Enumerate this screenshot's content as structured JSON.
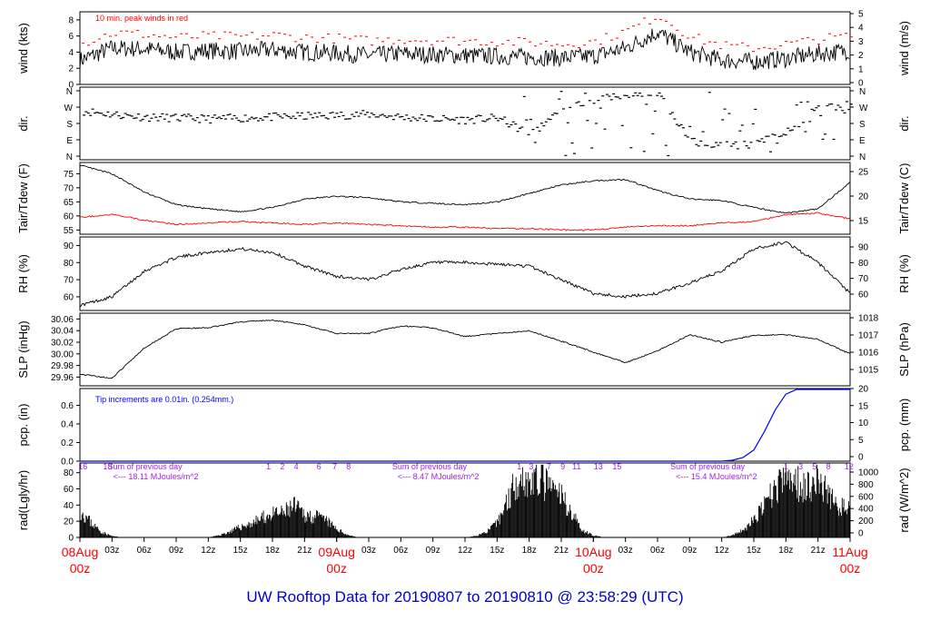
{
  "title": "UW Rooftop Data for 20190807  to  20190810 @ 23:58:29  (UTC)",
  "colors": {
    "data": "#000000",
    "peak": "#ff0000",
    "dewpoint": "#ff0000",
    "precip": "#0000ff",
    "radiation_notes": "#a020f0",
    "day_labels": "#ff0000",
    "title": "#0000cc"
  },
  "time_axis": {
    "start": "2019-08-08 00z",
    "end": "2019-08-11 00z",
    "tick_labels": [
      "03z",
      "06z",
      "09z",
      "12z",
      "15z",
      "18z",
      "21z",
      "",
      "03z",
      "06z",
      "09z",
      "12z",
      "15z",
      "18z",
      "21z",
      "",
      "03z",
      "06z",
      "09z",
      "12z",
      "15z",
      "18z",
      "21z"
    ],
    "day_labels": [
      {
        "date": "08Aug",
        "hour": "00z"
      },
      {
        "date": "09Aug",
        "hour": "00z"
      },
      {
        "date": "10Aug",
        "hour": "00z"
      },
      {
        "date": "11Aug",
        "hour": "00z"
      }
    ]
  },
  "chart_data": [
    {
      "type": "line",
      "id": "wind",
      "ylabel": "wind (kts)",
      "ylabel_right": "wind (m/s)",
      "ylim": [
        0,
        9
      ],
      "yticks": [
        0,
        2,
        4,
        6,
        8
      ],
      "yticks_right": [
        0,
        1,
        2,
        3,
        4,
        5
      ],
      "annotation": "10 min. peak winds in red",
      "x_hours": [
        0,
        3,
        6,
        9,
        12,
        15,
        18,
        21,
        24,
        27,
        30,
        33,
        36,
        39,
        42,
        45,
        48,
        51,
        54,
        57,
        60,
        63,
        66,
        69,
        72
      ],
      "series": [
        {
          "role": "mean",
          "values": [
            3.0,
            4.5,
            4.4,
            4.0,
            4.2,
            4.1,
            4.3,
            4.0,
            3.9,
            3.6,
            3.8,
            3.7,
            3.6,
            3.5,
            3.4,
            3.3,
            3.5,
            4.5,
            6.5,
            4.0,
            3.0,
            2.8,
            3.2,
            3.8,
            4.2
          ]
        },
        {
          "role": "peak",
          "values": [
            5.0,
            6.4,
            6.2,
            5.8,
            6.0,
            5.9,
            6.1,
            5.8,
            5.7,
            5.4,
            5.6,
            5.5,
            5.4,
            5.3,
            5.2,
            5.0,
            5.3,
            6.6,
            8.6,
            5.9,
            4.8,
            4.5,
            5.0,
            5.6,
            6.0
          ]
        }
      ]
    },
    {
      "type": "scatter",
      "id": "direction",
      "ylabel": "dir.",
      "ylabel_right": "dir.",
      "ytick_labels": [
        "N",
        "W",
        "S",
        "E",
        "N"
      ],
      "yticks_deg": [
        360,
        270,
        180,
        90,
        0
      ],
      "x_hours": [
        0,
        3,
        6,
        9,
        12,
        15,
        18,
        21,
        24,
        27,
        30,
        33,
        36,
        39,
        42,
        45,
        48,
        51,
        54,
        57,
        60,
        63,
        66,
        69,
        72
      ],
      "series": [
        {
          "role": "direction",
          "values": [
            250,
            230,
            215,
            210,
            205,
            210,
            215,
            220,
            225,
            230,
            215,
            205,
            200,
            210,
            120,
            250,
            310,
            330,
            345,
            80,
            60,
            65,
            130,
            270,
            280
          ]
        }
      ]
    },
    {
      "type": "line",
      "id": "temperature",
      "ylabel": "Tair/Tdew (F)",
      "ylabel_right": "Tair/Tdew (C)",
      "ylim": [
        53.5,
        79
      ],
      "yticks": [
        55,
        60,
        65,
        70,
        75
      ],
      "yticks_right": [
        15,
        20,
        25
      ],
      "x_hours": [
        0,
        3,
        6,
        9,
        12,
        15,
        18,
        21,
        24,
        27,
        30,
        33,
        36,
        39,
        42,
        45,
        48,
        51,
        54,
        57,
        60,
        63,
        66,
        69,
        72
      ],
      "series": [
        {
          "role": "air temperature",
          "values": [
            78.0,
            75.0,
            68.5,
            64.0,
            62.5,
            61.5,
            63.0,
            66.0,
            67.0,
            66.5,
            65.0,
            64.5,
            64.0,
            65.0,
            68.0,
            71.0,
            72.5,
            73.0,
            69.0,
            66.0,
            65.5,
            63.0,
            61.0,
            62.5,
            72.0
          ]
        },
        {
          "role": "dew point",
          "values": [
            59.5,
            60.5,
            58.5,
            57.0,
            57.5,
            58.0,
            57.5,
            57.0,
            57.5,
            57.0,
            56.5,
            56.0,
            56.0,
            55.5,
            55.5,
            55.0,
            55.0,
            56.0,
            56.5,
            56.5,
            57.5,
            58.0,
            60.5,
            61.0,
            59.0
          ]
        }
      ]
    },
    {
      "type": "line",
      "id": "humidity",
      "ylabel": "RH (%)",
      "ylabel_right": "RH (%)",
      "ylim": [
        52,
        95
      ],
      "yticks": [
        60,
        70,
        80,
        90
      ],
      "yticks_right": [
        60,
        70,
        80,
        90
      ],
      "x_hours": [
        0,
        3,
        6,
        9,
        12,
        15,
        18,
        21,
        24,
        27,
        30,
        33,
        36,
        39,
        42,
        45,
        48,
        51,
        54,
        57,
        60,
        63,
        66,
        69,
        72
      ],
      "series": [
        {
          "role": "relative humidity",
          "values": [
            55,
            60,
            75,
            83,
            86,
            88,
            86,
            78,
            72,
            70,
            76,
            80,
            80,
            79,
            78,
            70,
            62,
            60,
            62,
            68,
            75,
            88,
            92,
            80,
            62
          ]
        }
      ]
    },
    {
      "type": "line",
      "id": "pressure",
      "ylabel": "SLP (inHg)",
      "ylabel_right": "SLP (hPa)",
      "ylim": [
        29.945,
        30.07
      ],
      "yticks": [
        29.96,
        29.98,
        30.0,
        30.02,
        30.04,
        30.06
      ],
      "ytick_labels": [
        "29.96",
        "29.98",
        "30.00",
        "30.02",
        "30.04",
        "30.06"
      ],
      "yticks_right": [
        1015,
        1016,
        1017,
        1018
      ],
      "x_hours": [
        0,
        3,
        6,
        9,
        12,
        15,
        18,
        21,
        24,
        27,
        30,
        33,
        36,
        39,
        42,
        45,
        48,
        51,
        54,
        57,
        60,
        63,
        66,
        69,
        72
      ],
      "series": [
        {
          "role": "sea level pressure",
          "values": [
            29.965,
            29.958,
            30.01,
            30.043,
            30.045,
            30.055,
            30.058,
            30.05,
            30.035,
            30.035,
            30.048,
            30.045,
            30.03,
            30.035,
            30.04,
            30.022,
            30.003,
            29.985,
            30.005,
            30.033,
            30.02,
            30.032,
            30.033,
            30.025,
            30.0
          ]
        }
      ]
    },
    {
      "type": "line",
      "id": "precipitation",
      "ylabel": "pcp. (in)",
      "ylabel_right": "pcp. (mm)",
      "ylim": [
        0,
        0.78
      ],
      "yticks": [
        0.0,
        0.2,
        0.4,
        0.6
      ],
      "ytick_labels": [
        "0.0",
        "0.2",
        "0.4",
        "0.6"
      ],
      "yticks_right": [
        0,
        5,
        10,
        15,
        20
      ],
      "annotation": "Tip increments are 0.01in. (0.254mm.)",
      "x_hours": [
        0,
        60,
        61,
        62,
        63,
        64,
        65,
        66,
        67,
        72
      ],
      "series": [
        {
          "role": "accumulated precipitation",
          "values": [
            0,
            0,
            0.01,
            0.04,
            0.12,
            0.32,
            0.55,
            0.72,
            0.77,
            0.77
          ]
        }
      ]
    },
    {
      "type": "area",
      "id": "radiation",
      "ylabel": "rad(Lgly/hr)",
      "ylabel_right": "rad (W/m^2)",
      "ylim": [
        0,
        92
      ],
      "yticks": [
        0,
        20,
        40,
        60,
        80
      ],
      "yticks_right": [
        0,
        200,
        400,
        600,
        800,
        1000
      ],
      "x_hours": [
        0,
        1,
        2,
        3,
        4,
        5,
        6,
        7,
        8,
        9,
        10,
        11,
        12,
        13,
        14,
        15,
        16,
        17,
        18,
        19,
        20,
        21,
        22,
        23,
        24,
        25,
        26,
        27,
        28,
        29,
        30,
        31,
        32,
        33,
        34,
        35,
        36,
        37,
        38,
        39,
        40,
        41,
        42,
        43,
        44,
        45,
        46,
        47,
        48,
        49,
        50,
        51,
        52,
        53,
        54,
        55,
        56,
        57,
        58,
        59,
        60,
        61,
        62,
        63,
        64,
        65,
        66,
        67,
        68,
        69,
        70,
        71,
        72
      ],
      "series": [
        {
          "role": "solar radiation",
          "values": [
            40,
            22,
            8,
            2,
            0,
            0,
            0,
            0,
            0,
            0,
            0,
            0,
            0,
            3,
            8,
            15,
            20,
            28,
            33,
            35,
            45,
            33,
            30,
            25,
            12,
            4,
            0,
            0,
            0,
            0,
            0,
            0,
            0,
            0,
            0,
            0,
            0,
            2,
            8,
            20,
            55,
            90,
            80,
            85,
            70,
            60,
            35,
            10,
            3,
            0,
            0,
            0,
            0,
            0,
            0,
            0,
            0,
            0,
            0,
            0,
            0,
            3,
            10,
            25,
            45,
            70,
            85,
            80,
            75,
            85,
            60,
            45,
            40
          ]
        }
      ],
      "day_annotations": [
        {
          "x_hour": 2.6,
          "line1": "Sum of previous day",
          "line2": "<--- 18.11 MJoules/m^2"
        },
        {
          "x_hour": 29.2,
          "line1": "Sum of previous day",
          "line2": "<--- 8.47 MJoules/m^2"
        },
        {
          "x_hour": 55.2,
          "line1": "Sum of previous day",
          "line2": "<--- 15.4 MJoules/m^2"
        }
      ],
      "hour_marks": [
        {
          "x_hour": 0.3,
          "label": "16"
        },
        {
          "x_hour": 2.8,
          "label": "18"
        },
        {
          "x_hour": 19.1,
          "label": "1"
        },
        {
          "x_hour": 20.5,
          "label": "2"
        },
        {
          "x_hour": 21.9,
          "label": "4"
        },
        {
          "x_hour": 24.2,
          "label": "6"
        },
        {
          "x_hour": 25.8,
          "label": "7"
        },
        {
          "x_hour": 27.2,
          "label": "8"
        },
        {
          "x_hour": 44.5,
          "label": "1"
        },
        {
          "x_hour": 45.7,
          "label": "3"
        },
        {
          "x_hour": 47.5,
          "label": "7"
        },
        {
          "x_hour": 48.9,
          "label": "9"
        },
        {
          "x_hour": 50.3,
          "label": "11"
        },
        {
          "x_hour": 52.5,
          "label": "13"
        },
        {
          "x_hour": 54.4,
          "label": "15"
        },
        {
          "x_hour": 71.5,
          "label": "1"
        },
        {
          "x_hour": 73.0,
          "label": "3"
        },
        {
          "x_hour": 74.4,
          "label": "5"
        },
        {
          "x_hour": 75.8,
          "label": "8"
        },
        {
          "x_hour": 77.9,
          "label": "12"
        }
      ]
    }
  ]
}
